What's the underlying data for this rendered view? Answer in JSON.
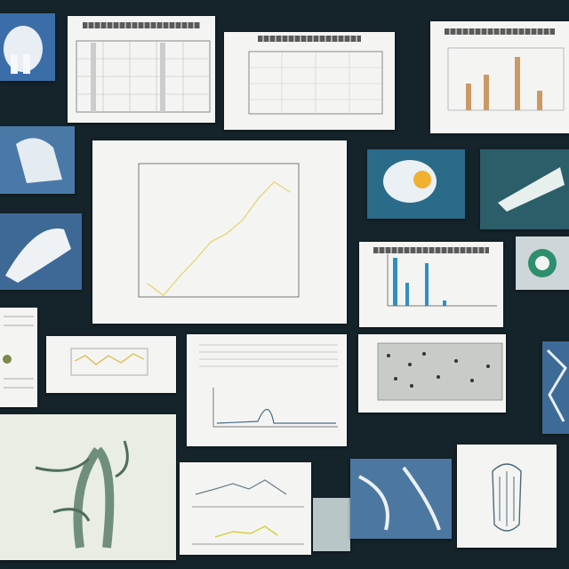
{
  "palette": {
    "background": "#15232a",
    "paper": "#f4f5f3",
    "photo_blue": "#3a5f86",
    "line_yellow": "#e6d98a",
    "bar_blue": "#2f8fc2",
    "plant_green": "#6f8f7a"
  },
  "main_chart": {
    "title": "",
    "yticks": [
      "",
      "",
      "",
      "",
      "",
      ""
    ],
    "xlabel": ""
  },
  "chart_data": {
    "type": "line",
    "title": "",
    "xlabel": "",
    "ylabel": "",
    "x": [
      1,
      2,
      3,
      4,
      5,
      6,
      7,
      8,
      9,
      10
    ],
    "values": [
      0.8,
      0.1,
      1.2,
      2.2,
      3.3,
      3.8,
      4.6,
      5.9,
      6.9,
      6.3
    ],
    "ylim": [
      0,
      8
    ],
    "grid": false
  }
}
